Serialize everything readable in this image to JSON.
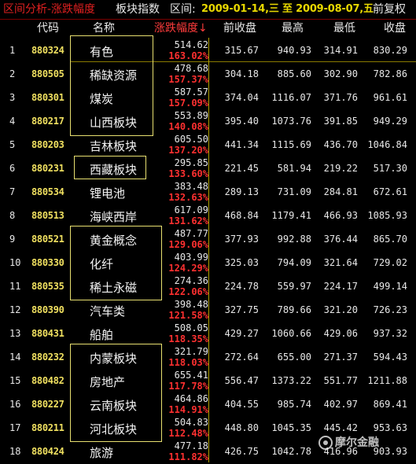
{
  "title_bar": {
    "title": "区间分析-涨跌幅度",
    "sector": "板块指数",
    "range_label": "区间:",
    "dates": "2009-01-14,三 至 2009-08-07,五",
    "adjust": "前复权"
  },
  "columns": {
    "code": "代码",
    "name": "名称",
    "change": "涨跌幅度↓",
    "prev_close": "前收盘",
    "high": "最高",
    "low": "最低",
    "close": "收盘"
  },
  "rows": [
    {
      "idx": "1",
      "code": "880324",
      "name": "有色",
      "change": "514.62",
      "pct": "163.02%",
      "prev": "315.67",
      "high": "940.93",
      "low": "314.91",
      "close": "830.29"
    },
    {
      "idx": "2",
      "code": "880505",
      "name": "稀缺资源",
      "change": "478.68",
      "pct": "157.37%",
      "prev": "304.18",
      "high": "885.60",
      "low": "302.90",
      "close": "782.86"
    },
    {
      "idx": "3",
      "code": "880301",
      "name": "煤炭",
      "change": "587.57",
      "pct": "157.09%",
      "prev": "374.04",
      "high": "1116.07",
      "low": "371.76",
      "close": "961.61"
    },
    {
      "idx": "4",
      "code": "880217",
      "name": "山西板块",
      "change": "553.89",
      "pct": "140.08%",
      "prev": "395.40",
      "high": "1073.76",
      "low": "391.85",
      "close": "949.29"
    },
    {
      "idx": "5",
      "code": "880203",
      "name": "吉林板块",
      "change": "605.50",
      "pct": "137.20%",
      "prev": "441.34",
      "high": "1115.69",
      "low": "436.70",
      "close": "1046.84"
    },
    {
      "idx": "6",
      "code": "880231",
      "name": "西藏板块",
      "change": "295.85",
      "pct": "133.60%",
      "prev": "221.45",
      "high": "581.94",
      "low": "219.22",
      "close": "517.30"
    },
    {
      "idx": "7",
      "code": "880534",
      "name": "锂电池",
      "change": "383.48",
      "pct": "132.63%",
      "prev": "289.13",
      "high": "731.09",
      "low": "284.81",
      "close": "672.61"
    },
    {
      "idx": "8",
      "code": "880513",
      "name": "海峡西岸",
      "change": "617.09",
      "pct": "131.62%",
      "prev": "468.84",
      "high": "1179.41",
      "low": "466.93",
      "close": "1085.93"
    },
    {
      "idx": "9",
      "code": "880521",
      "name": "黄金概念",
      "change": "487.77",
      "pct": "129.06%",
      "prev": "377.93",
      "high": "992.88",
      "low": "376.44",
      "close": "865.70"
    },
    {
      "idx": "10",
      "code": "880330",
      "name": "化纤",
      "change": "403.99",
      "pct": "124.29%",
      "prev": "325.03",
      "high": "794.09",
      "low": "321.64",
      "close": "729.02"
    },
    {
      "idx": "11",
      "code": "880535",
      "name": "稀土永磁",
      "change": "274.36",
      "pct": "122.06%",
      "prev": "224.78",
      "high": "559.97",
      "low": "224.17",
      "close": "499.14"
    },
    {
      "idx": "12",
      "code": "880390",
      "name": "汽车类",
      "change": "398.48",
      "pct": "121.58%",
      "prev": "327.75",
      "high": "789.66",
      "low": "321.20",
      "close": "726.23"
    },
    {
      "idx": "13",
      "code": "880431",
      "name": "船舶",
      "change": "508.05",
      "pct": "118.35%",
      "prev": "429.27",
      "high": "1060.66",
      "low": "429.06",
      "close": "937.32"
    },
    {
      "idx": "14",
      "code": "880232",
      "name": "内蒙板块",
      "change": "321.79",
      "pct": "118.03%",
      "prev": "272.64",
      "high": "655.00",
      "low": "271.37",
      "close": "594.43"
    },
    {
      "idx": "15",
      "code": "880482",
      "name": "房地产",
      "change": "655.41",
      "pct": "117.78%",
      "prev": "556.47",
      "high": "1373.22",
      "low": "551.77",
      "close": "1211.88"
    },
    {
      "idx": "16",
      "code": "880227",
      "name": "云南板块",
      "change": "464.86",
      "pct": "114.91%",
      "prev": "404.55",
      "high": "985.74",
      "low": "402.97",
      "close": "869.41"
    },
    {
      "idx": "17",
      "code": "880211",
      "name": "河北板块",
      "change": "504.83",
      "pct": "112.48%",
      "prev": "448.80",
      "high": "1045.35",
      "low": "445.42",
      "close": "953.63"
    },
    {
      "idx": "18",
      "code": "880424",
      "name": "旅游",
      "change": "477.18",
      "pct": "111.82%",
      "prev": "426.75",
      "high": "1042.78",
      "low": "416.96",
      "close": "903.93"
    }
  ],
  "watermark": "摩尔金融"
}
